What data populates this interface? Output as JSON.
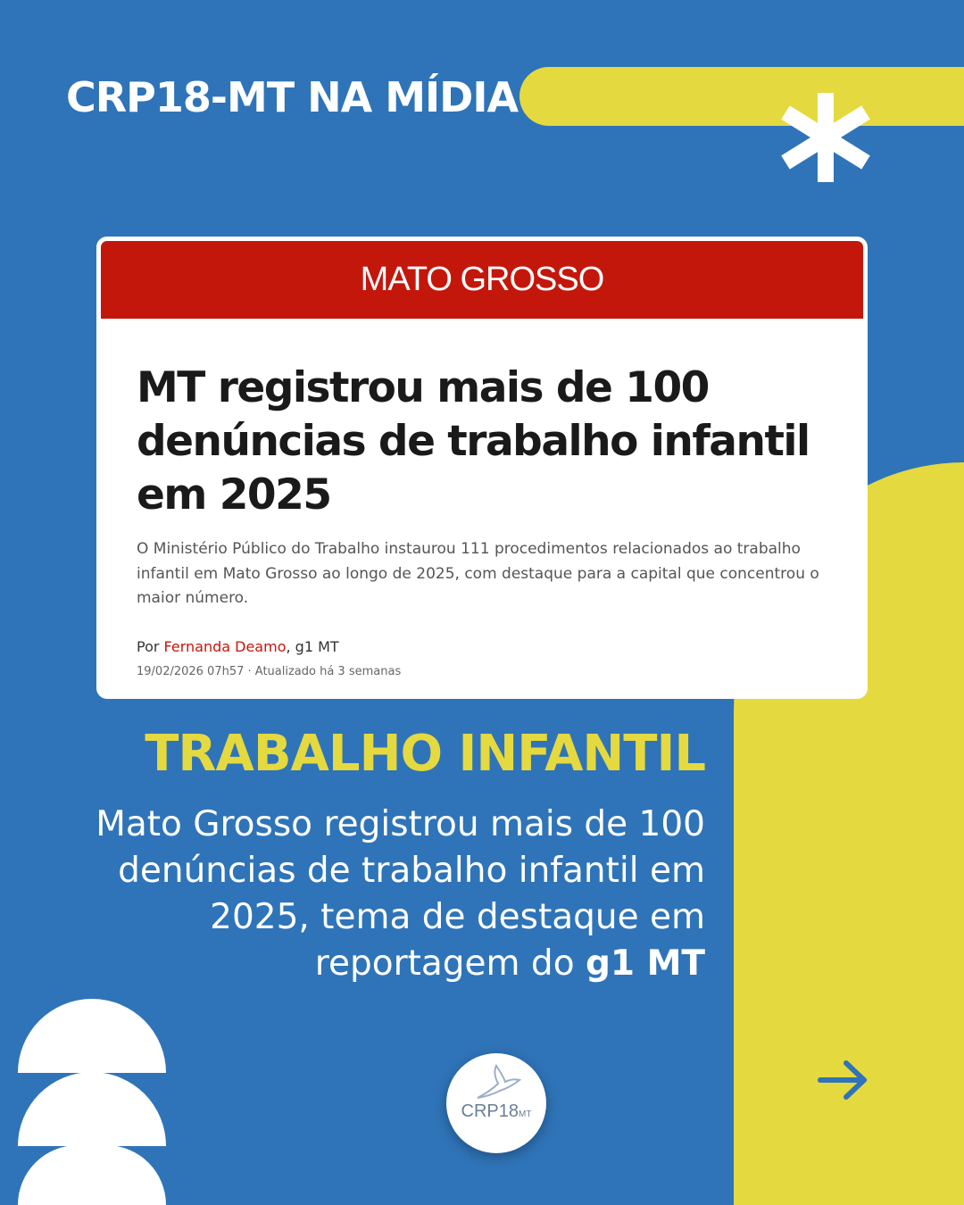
{
  "header": {
    "title": "CRP18-MT NA MÍDIA"
  },
  "article": {
    "section": "MATO GROSSO",
    "headline": "MT registrou mais de 100 denúncias de trabalho infantil em 2025",
    "summary": "O Ministério Público do Trabalho instaurou 111 procedimentos relacionados ao trabalho infantil em Mato Grosso ao longo de 2025, com destaque para a capital que concentrou o maior número.",
    "by_prefix": "Por ",
    "author": "Fernanda Deamo",
    "outlet": ", g1 MT",
    "dateline": "19/02/2026 07h57 · Atualizado há 3 semanas"
  },
  "topic": "TRABALHO INFANTIL",
  "description": {
    "text": "Mato Grosso registrou mais de 100 denúncias de trabalho infantil em 2025, tema de destaque em reportagem do ",
    "bold": "g1 MT"
  },
  "logo": {
    "text": "CRP18",
    "suffix": "MT"
  },
  "icons": [
    "asterisk-icon",
    "arrow-right-icon"
  ],
  "colors": {
    "background": "#2f74b8",
    "accent": "#e5d940",
    "banner": "#c4170c"
  }
}
